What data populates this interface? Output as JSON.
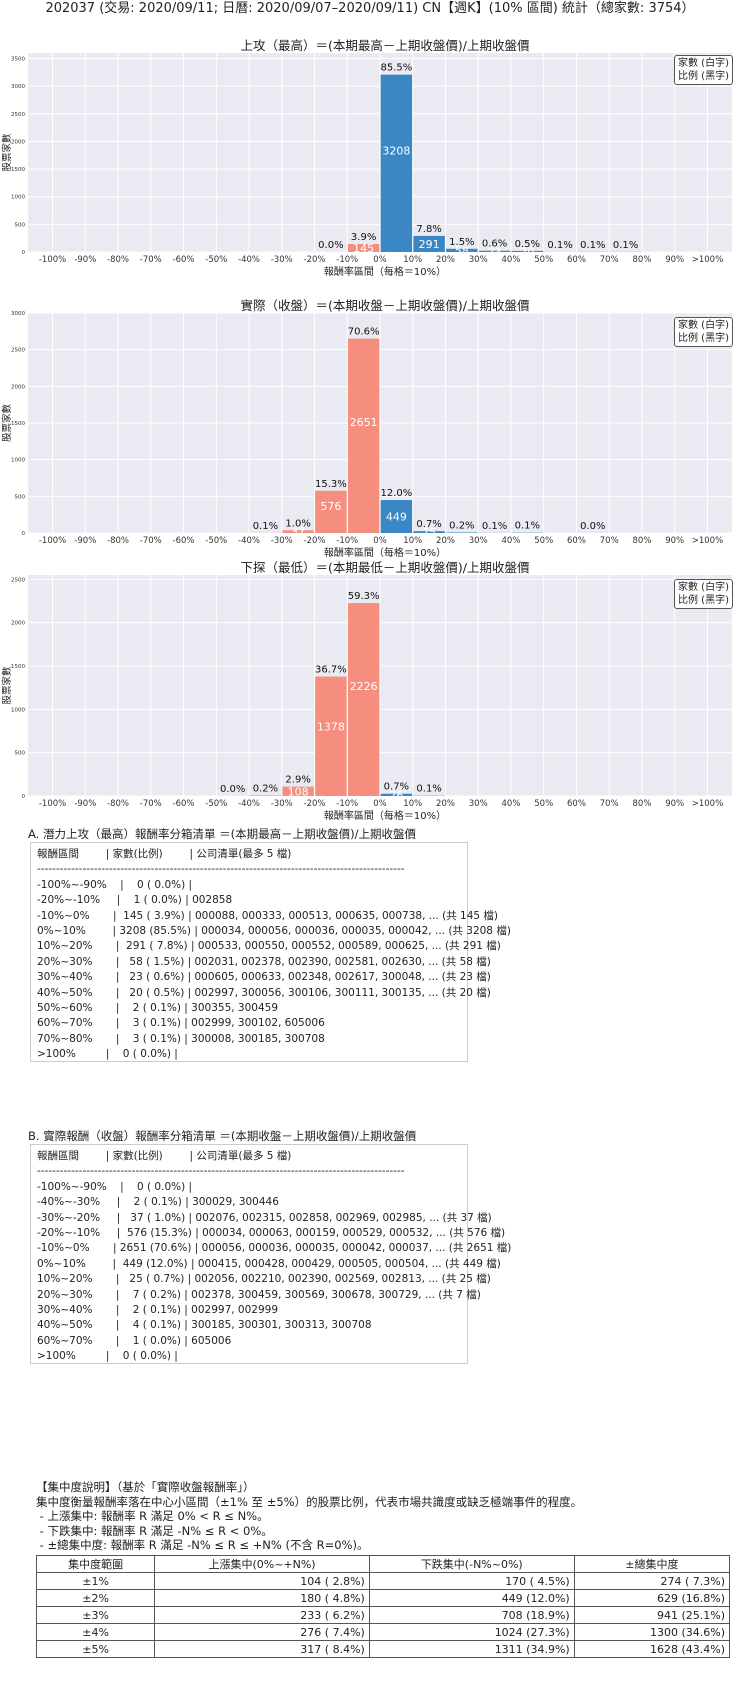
{
  "main_title": "202037 (交易: 2020/09/11; 日曆: 2020/09/07–2020/09/11) CN【週K】(10% 區間) 統計（總家數: 3754）",
  "legend": {
    "line1": "家數 (白字)",
    "line2": "比例 (黑字)"
  },
  "colors": {
    "positive": "#3a87c3",
    "negative": "#f68e80",
    "plot_bg": "#eaeaf2",
    "grid": "#ffffff"
  },
  "chart_data": [
    {
      "type": "bar",
      "title": "上攻（最高）＝(本期最高－上期收盤價)/上期收盤價",
      "xlabel": "報酬率區間（每格＝10%）",
      "ylabel": "股票家數",
      "categories": [
        "-100%",
        "-90%",
        "-80%",
        "-70%",
        "-60%",
        "-50%",
        "-40%",
        "-30%",
        "-20%",
        "-10%",
        "0%",
        "10%",
        "20%",
        "30%",
        "40%",
        "50%",
        "60%",
        "70%",
        "80%",
        "90%",
        ">100%"
      ],
      "yticks": [
        0,
        500,
        1000,
        1500,
        2000,
        2500,
        3000,
        3500
      ],
      "ylim": [
        0,
        3600
      ],
      "bars": [
        {
          "x_index": 8.5,
          "value": 1,
          "pct": "0.0%",
          "sign": "neg"
        },
        {
          "x_index": 9.5,
          "value": 145,
          "pct": "3.9%",
          "sign": "neg"
        },
        {
          "x_index": 10.5,
          "value": 3208,
          "pct": "85.5%",
          "sign": "pos"
        },
        {
          "x_index": 11.5,
          "value": 291,
          "pct": "7.8%",
          "sign": "pos"
        },
        {
          "x_index": 12.5,
          "value": 58,
          "pct": "1.5%",
          "sign": "pos"
        },
        {
          "x_index": 13.5,
          "value": 23,
          "pct": "0.6%",
          "sign": "pos"
        },
        {
          "x_index": 14.5,
          "value": 20,
          "pct": "0.5%",
          "sign": "pos"
        },
        {
          "x_index": 15.5,
          "value": 2,
          "pct": "0.1%",
          "sign": "pos"
        },
        {
          "x_index": 16.5,
          "value": 3,
          "pct": "0.1%",
          "sign": "pos"
        },
        {
          "x_index": 17.5,
          "value": 3,
          "pct": "0.1%",
          "sign": "pos"
        }
      ]
    },
    {
      "type": "bar",
      "title": "實際（收盤）＝(本期收盤－上期收盤價)/上期收盤價",
      "xlabel": "報酬率區間（每格＝10%）",
      "ylabel": "股票家數",
      "categories": [
        "-100%",
        "-90%",
        "-80%",
        "-70%",
        "-60%",
        "-50%",
        "-40%",
        "-30%",
        "-20%",
        "-10%",
        "0%",
        "10%",
        "20%",
        "30%",
        "40%",
        "50%",
        "60%",
        "70%",
        "80%",
        "90%",
        ">100%"
      ],
      "yticks": [
        0,
        500,
        1000,
        1500,
        2000,
        2500,
        3000
      ],
      "ylim": [
        0,
        3000
      ],
      "bars": [
        {
          "x_index": 6.5,
          "value": 2,
          "pct": "0.1%",
          "sign": "neg"
        },
        {
          "x_index": 7.5,
          "value": 37,
          "pct": "1.0%",
          "sign": "neg"
        },
        {
          "x_index": 8.5,
          "value": 576,
          "pct": "15.3%",
          "sign": "neg"
        },
        {
          "x_index": 9.5,
          "value": 2651,
          "pct": "70.6%",
          "sign": "neg"
        },
        {
          "x_index": 10.5,
          "value": 449,
          "pct": "12.0%",
          "sign": "pos"
        },
        {
          "x_index": 11.5,
          "value": 25,
          "pct": "0.7%",
          "sign": "pos"
        },
        {
          "x_index": 12.5,
          "value": 7,
          "pct": "0.2%",
          "sign": "pos"
        },
        {
          "x_index": 13.5,
          "value": 2,
          "pct": "0.1%",
          "sign": "pos"
        },
        {
          "x_index": 14.5,
          "value": 4,
          "pct": "0.1%",
          "sign": "pos"
        },
        {
          "x_index": 16.5,
          "value": 1,
          "pct": "0.0%",
          "sign": "pos"
        }
      ]
    },
    {
      "type": "bar",
      "title": "下探（最低）＝(本期最低－上期收盤價)/上期收盤價",
      "xlabel": "報酬率區間（每格＝10%）",
      "ylabel": "股票家數",
      "categories": [
        "-100%",
        "-90%",
        "-80%",
        "-70%",
        "-60%",
        "-50%",
        "-40%",
        "-30%",
        "-20%",
        "-10%",
        "0%",
        "10%",
        "20%",
        "30%",
        "40%",
        "50%",
        "60%",
        "70%",
        "80%",
        "90%",
        ">100%"
      ],
      "yticks": [
        0,
        500,
        1000,
        1500,
        2000,
        2500
      ],
      "ylim": [
        0,
        2550
      ],
      "bars": [
        {
          "x_index": 5.5,
          "value": 1,
          "pct": "0.0%",
          "sign": "neg"
        },
        {
          "x_index": 6.5,
          "value": 6,
          "pct": "0.2%",
          "sign": "neg"
        },
        {
          "x_index": 7.5,
          "value": 108,
          "pct": "2.9%",
          "sign": "neg"
        },
        {
          "x_index": 8.5,
          "value": 1378,
          "pct": "36.7%",
          "sign": "neg"
        },
        {
          "x_index": 9.5,
          "value": 2226,
          "pct": "59.3%",
          "sign": "neg"
        },
        {
          "x_index": 10.5,
          "value": 26,
          "pct": "0.7%",
          "sign": "pos"
        },
        {
          "x_index": 11.5,
          "value": 3,
          "pct": "0.1%",
          "sign": "pos"
        }
      ]
    }
  ],
  "section_a": {
    "title": "A. 潛力上攻（最高）報酬率分箱清單 ＝(本期最高－上期收盤價)/上期收盤價",
    "lines": [
      "報酬區間        | 家數(比例)        | 公司清單(最多 5 檔)",
      "-------------------------------------------------------------------------------------------------",
      "-100%~-90%    |    0 ( 0.0%) |",
      "-20%~-10%     |    1 ( 0.0%) | 002858",
      "-10%~0%       |  145 ( 3.9%) | 000088, 000333, 000513, 000635, 000738, ... (共 145 檔)",
      "0%~10%        | 3208 (85.5%) | 000034, 000056, 000036, 000035, 000042, ... (共 3208 檔)",
      "10%~20%       |  291 ( 7.8%) | 000533, 000550, 000552, 000589, 000625, ... (共 291 檔)",
      "20%~30%       |   58 ( 1.5%) | 002031, 002378, 002390, 002581, 002630, ... (共 58 檔)",
      "30%~40%       |   23 ( 0.6%) | 000605, 000633, 002348, 002617, 300048, ... (共 23 檔)",
      "40%~50%       |   20 ( 0.5%) | 002997, 300056, 300106, 300111, 300135, ... (共 20 檔)",
      "50%~60%       |    2 ( 0.1%) | 300355, 300459",
      "60%~70%       |    3 ( 0.1%) | 002999, 300102, 605006",
      "70%~80%       |    3 ( 0.1%) | 300008, 300185, 300708",
      ">100%         |    0 ( 0.0%) |"
    ]
  },
  "section_b": {
    "title": "B. 實際報酬（收盤）報酬率分箱清單 ＝(本期收盤－上期收盤價)/上期收盤價",
    "lines": [
      "報酬區間        | 家數(比例)        | 公司清單(最多 5 檔)",
      "-------------------------------------------------------------------------------------------------",
      "-100%~-90%    |    0 ( 0.0%) |",
      "-40%~-30%     |    2 ( 0.1%) | 300029, 300446",
      "-30%~-20%     |   37 ( 1.0%) | 002076, 002315, 002858, 002969, 002985, ... (共 37 檔)",
      "-20%~-10%     |  576 (15.3%) | 000034, 000063, 000159, 000529, 000532, ... (共 576 檔)",
      "-10%~0%       | 2651 (70.6%) | 000056, 000036, 000035, 000042, 000037, ... (共 2651 檔)",
      "0%~10%        |  449 (12.0%) | 000415, 000428, 000429, 000505, 000504, ... (共 449 檔)",
      "10%~20%       |   25 ( 0.7%) | 002056, 002210, 002390, 002569, 002813, ... (共 25 檔)",
      "20%~30%       |    7 ( 0.2%) | 002378, 300459, 300569, 300678, 300729, ... (共 7 檔)",
      "30%~40%       |    2 ( 0.1%) | 002997, 002999",
      "40%~50%       |    4 ( 0.1%) | 300185, 300301, 300313, 300708",
      "60%~70%       |    1 ( 0.0%) | 605006",
      ">100%         |    0 ( 0.0%) |"
    ]
  },
  "concentration": {
    "lines": [
      "【集中度說明】（基於「實際收盤報酬率」）",
      "集中度衡量報酬率落在中心小區間（±1% 至 ±5%）的股票比例，代表市場共識度或缺乏極端事件的程度。",
      " - 上漲集中: 報酬率 R 滿足 0% < R ≤ N%。",
      " - 下跌集中: 報酬率 R 滿足 -N% ≤ R < 0%。",
      " - ±總集中度: 報酬率 R 滿足 -N% ≤ R ≤ +N% (不含 R=0%)。"
    ],
    "headers": [
      "集中度範圍",
      "上漲集中(0%~+N%)",
      "下跌集中(-N%~0%)",
      "±總集中度"
    ],
    "rows": [
      [
        "±1%",
        "104 ( 2.8%)",
        "170 ( 4.5%)",
        "274 ( 7.3%)"
      ],
      [
        "±2%",
        "180 ( 4.8%)",
        "449 (12.0%)",
        "629 (16.8%)"
      ],
      [
        "±3%",
        "233 ( 6.2%)",
        "708 (18.9%)",
        "941 (25.1%)"
      ],
      [
        "±4%",
        "276 ( 7.4%)",
        "1024 (27.3%)",
        "1300 (34.6%)"
      ],
      [
        "±5%",
        "317 ( 8.4%)",
        "1311 (34.9%)",
        "1628 (43.4%)"
      ]
    ]
  }
}
